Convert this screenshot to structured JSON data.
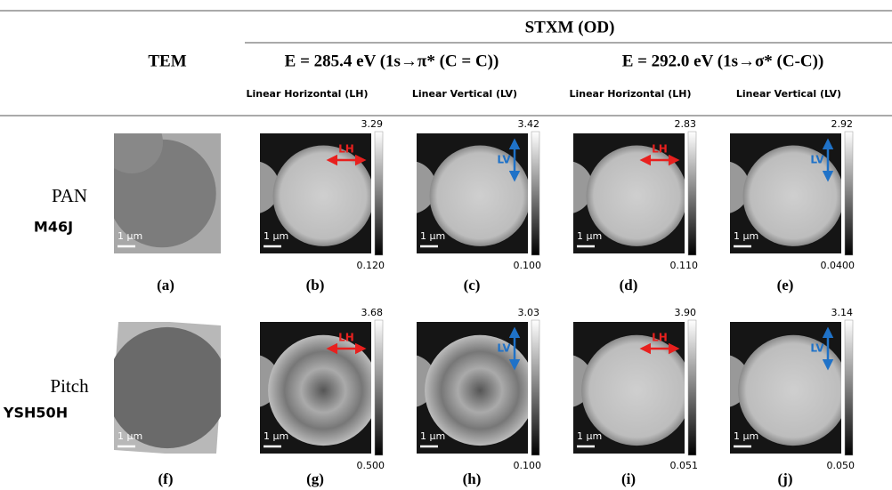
{
  "header": {
    "title": "STXM (OD)",
    "tem": "TEM",
    "energies": [
      "E = 285.4 eV (1s→π* (C = C))",
      "E = 292.0 eV (1s→σ* (C-C))"
    ],
    "polarizations": [
      "Linear Horizontal (LH)",
      "Linear Vertical (LV)",
      "Linear Horizontal (LH)",
      "Linear Vertical (LV)"
    ]
  },
  "rows": [
    {
      "material": "PAN",
      "sample": "M46J",
      "panels": [
        {
          "label": "(a)",
          "scale": "1 µm"
        },
        {
          "label": "(b)",
          "scale": "1 µm",
          "arrow": "LH",
          "max": "3.29",
          "min": "0.120"
        },
        {
          "label": "(c)",
          "scale": "1 µm",
          "arrow": "LV",
          "max": "3.42",
          "min": "0.100"
        },
        {
          "label": "(d)",
          "scale": "1 µm",
          "arrow": "LH",
          "max": "2.83",
          "min": "0.110"
        },
        {
          "label": "(e)",
          "scale": "1 µm",
          "arrow": "LV",
          "max": "2.92",
          "min": "0.0400"
        }
      ]
    },
    {
      "material": "Pitch",
      "sample": "YSH50H",
      "panels": [
        {
          "label": "(f)",
          "scale": "1 µm"
        },
        {
          "label": "(g)",
          "scale": "1 µm",
          "arrow": "LH",
          "max": "3.68",
          "min": "0.500"
        },
        {
          "label": "(h)",
          "scale": "1 µm",
          "arrow": "LV",
          "max": "3.03",
          "min": "0.100"
        },
        {
          "label": "(i)",
          "scale": "1 µm",
          "arrow": "LH",
          "max": "3.90",
          "min": "0.051"
        },
        {
          "label": "(j)",
          "scale": "1 µm",
          "arrow": "LV",
          "max": "3.14",
          "min": "0.050"
        }
      ]
    }
  ]
}
